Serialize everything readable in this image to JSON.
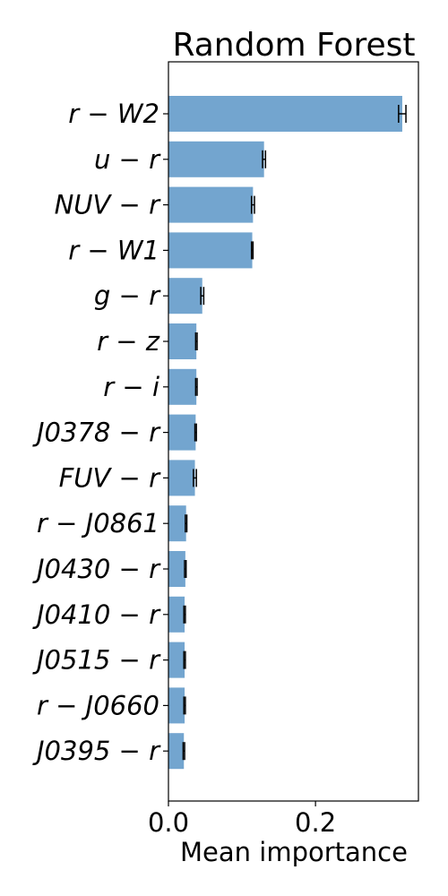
{
  "chart_data": {
    "type": "bar",
    "orientation": "horizontal",
    "title": "Random Forest",
    "xlabel": "Mean importance",
    "ylabel": "",
    "xlim": [
      0,
      0.34
    ],
    "xticks": [
      0.0,
      0.2
    ],
    "xtick_labels": [
      "0.0",
      "0.2"
    ],
    "grid": false,
    "bar_color": "#73a5cf",
    "error_color": "#000000",
    "categories": [
      "r − W2",
      "u − r",
      "NUV − r",
      "r − W1",
      "g − r",
      "r − z",
      "r − i",
      "J0378 − r",
      "FUV − r",
      "r − J0861",
      "J0430 − r",
      "J0410 − r",
      "J0515 − r",
      "r − J0660",
      "J0395 − r"
    ],
    "values": [
      0.318,
      0.13,
      0.115,
      0.114,
      0.046,
      0.038,
      0.038,
      0.037,
      0.036,
      0.024,
      0.023,
      0.022,
      0.022,
      0.022,
      0.021
    ],
    "errors": [
      0.005,
      0.002,
      0.002,
      0.001,
      0.002,
      0.001,
      0.001,
      0.001,
      0.002,
      0.001,
      0.001,
      0.001,
      0.001,
      0.001,
      0.001
    ]
  }
}
